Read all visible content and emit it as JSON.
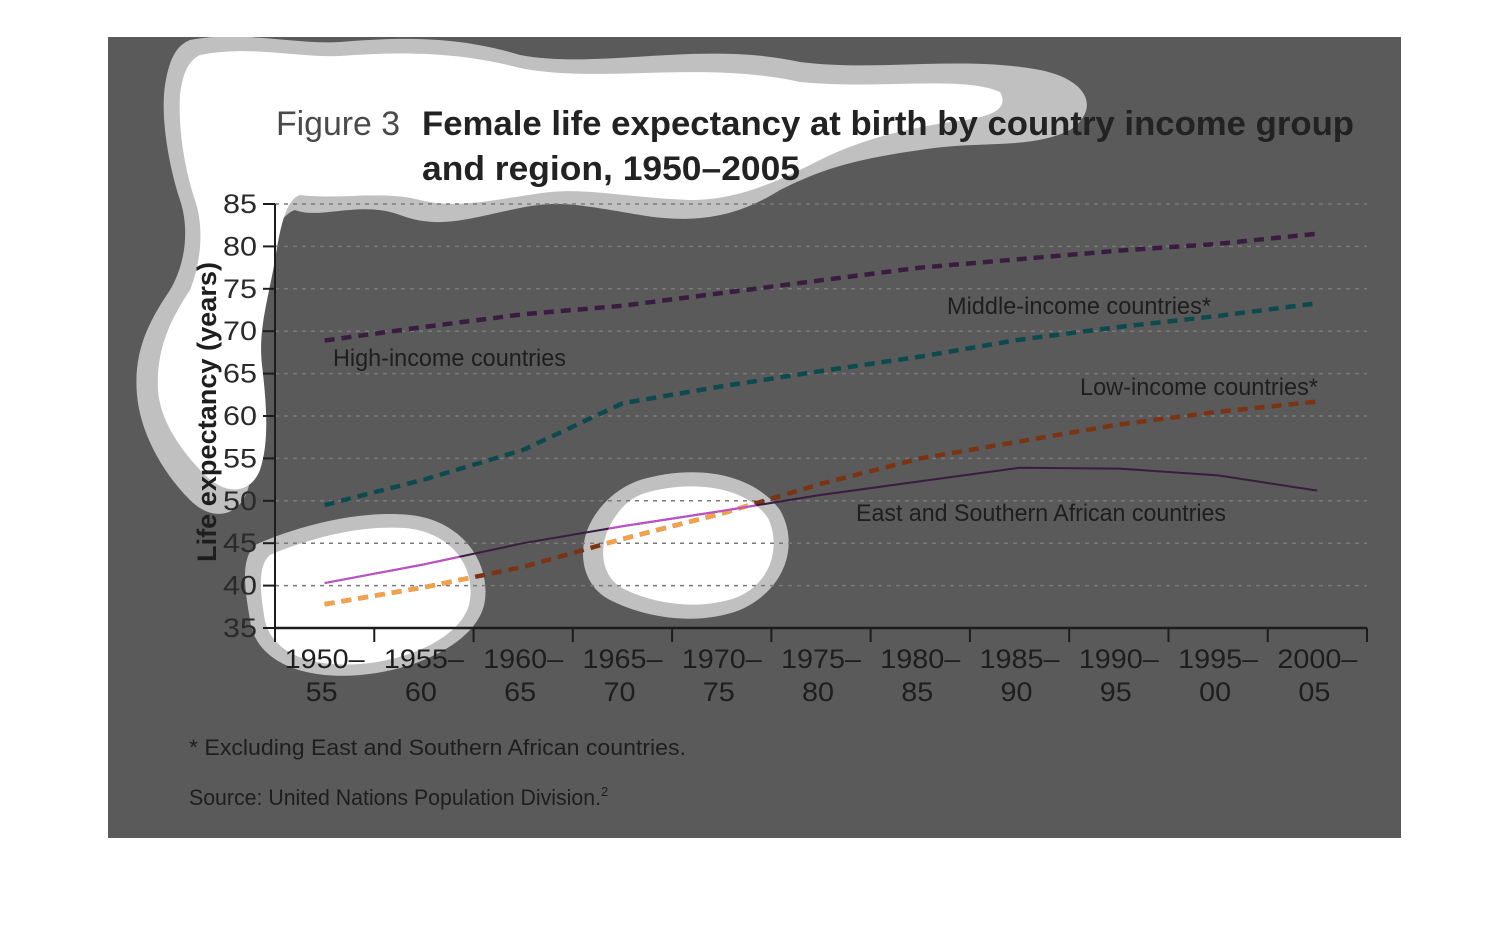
{
  "figure": {
    "label": "Figure 3",
    "title_line1": "Female life expectancy at birth by country income group",
    "title_line2": "and region, 1950–2005",
    "footnote": "* Excluding East and Southern African countries.",
    "source": "Source: United Nations Population Division.",
    "source_superscript": "2"
  },
  "colors": {
    "panel": "#5a5a5a",
    "grid": "#7a7a7a",
    "axis": "#1c1c1c",
    "text": "#1e1e1e",
    "high_income": "#3a1c40",
    "middle_income": "#0c4a4e",
    "low_income": "#7a3414",
    "low_income_highlight": "#f2a24a",
    "east_southern_africa": "#3a1c40",
    "east_southern_africa_highlight": "#c050c8",
    "blob_fill": "#ffffff",
    "blob_ring": "#c0c0c0"
  },
  "chart_data": {
    "type": "line",
    "title": "Female life expectancy at birth by country income group and region, 1950–2005",
    "xlabel": "",
    "ylabel": "Life expectancy (years)",
    "ylim": [
      35,
      85
    ],
    "yticks": [
      35,
      40,
      45,
      50,
      55,
      60,
      65,
      70,
      75,
      80,
      85
    ],
    "grid": true,
    "categories": [
      {
        "top": "1950–",
        "bottom": "55"
      },
      {
        "top": "1955–",
        "bottom": "60"
      },
      {
        "top": "1960–",
        "bottom": "65"
      },
      {
        "top": "1965–",
        "bottom": "70"
      },
      {
        "top": "1970–",
        "bottom": "75"
      },
      {
        "top": "1975–",
        "bottom": "80"
      },
      {
        "top": "1980–",
        "bottom": "85"
      },
      {
        "top": "1985–",
        "bottom": "90"
      },
      {
        "top": "1990–",
        "bottom": "95"
      },
      {
        "top": "1995–",
        "bottom": "00"
      },
      {
        "top": "2000–",
        "bottom": "05"
      }
    ],
    "series": [
      {
        "name": "High-income countries",
        "style": "dashed",
        "color_key": "high_income",
        "values": [
          68.9,
          70.5,
          72.0,
          73.0,
          74.5,
          76.0,
          77.5,
          78.5,
          79.5,
          80.3,
          81.5
        ]
      },
      {
        "name": "Middle-income countries*",
        "style": "dashed",
        "color_key": "middle_income",
        "values": [
          49.5,
          52.5,
          56.0,
          61.5,
          63.5,
          65.3,
          67.0,
          69.0,
          70.5,
          71.8,
          73.3
        ]
      },
      {
        "name": "Low-income countries*",
        "style": "dashed",
        "color_key": "low_income",
        "values": [
          37.8,
          39.8,
          42.2,
          45.5,
          48.5,
          52.0,
          55.0,
          57.0,
          59.0,
          60.5,
          61.7
        ]
      },
      {
        "name": "East and Southern African countries",
        "style": "solid",
        "color_key": "east_southern_africa",
        "values": [
          40.3,
          42.5,
          45.0,
          47.0,
          48.8,
          50.7,
          52.3,
          53.9,
          53.8,
          53.0,
          51.2
        ]
      }
    ]
  }
}
